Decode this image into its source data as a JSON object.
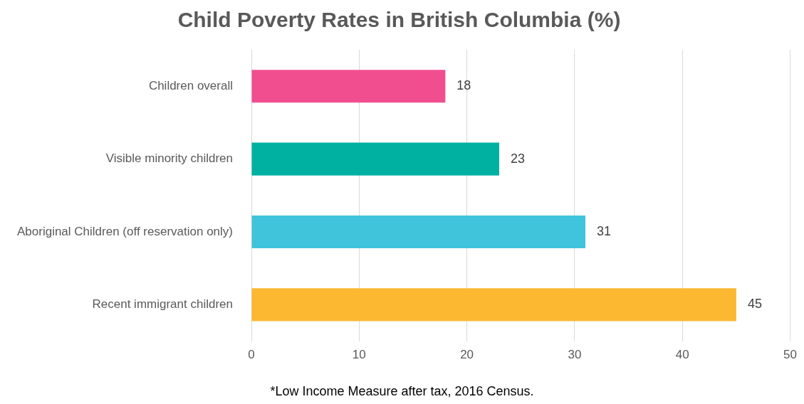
{
  "chart_data": {
    "type": "bar",
    "orientation": "horizontal",
    "title": "Child Poverty Rates in British Columbia (%)",
    "categories": [
      "Children overall",
      "Visible minority children",
      "Aboriginal Children (off reservation only)",
      "Recent immigrant children"
    ],
    "values": [
      18,
      23,
      31,
      45
    ],
    "colors": [
      "#f04e8f",
      "#00b0a0",
      "#40c4dc",
      "#fbb830"
    ],
    "xlim": [
      0,
      50
    ],
    "xticks": [
      0,
      10,
      20,
      30,
      40,
      50
    ],
    "grid": "x",
    "data_labels": true,
    "legend": false,
    "annotations": [
      "*Low Income Measure after tax, 2016 Census."
    ]
  }
}
